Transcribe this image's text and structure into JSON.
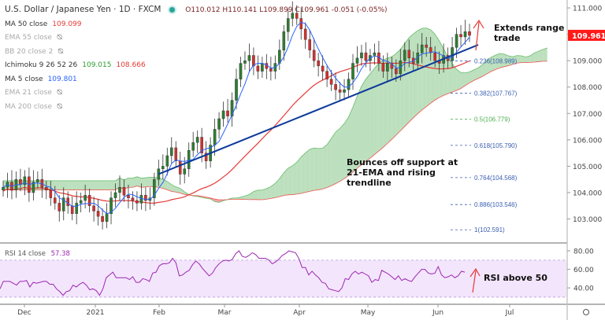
{
  "header": {
    "title": "U.S. Dollar / Japanese Yen · 1D · FXCM",
    "ohlc": {
      "open": "O110.012",
      "high": "H110.141",
      "low": "L109.899",
      "close": "C109.961",
      "change": "-0.051 (-0.05%)"
    }
  },
  "indicators": [
    {
      "label": "MA 50 close",
      "value": "109.099",
      "value_color": "#e53935",
      "hidden": false
    },
    {
      "label": "EMA 55 close",
      "value": "",
      "hidden": true
    },
    {
      "label": "BB 20 close 2",
      "value": "",
      "hidden": true
    },
    {
      "label": "Ichimoku 9 26 52 26",
      "value": "109.015",
      "value2": "108.666",
      "value_color": "#2e9a2e",
      "value2_color": "#e53935",
      "hidden": false
    },
    {
      "label": "MA 5 close",
      "value": "109.801",
      "value_color": "#2962ff",
      "hidden": false
    },
    {
      "label": "EMA 21 close",
      "value": "",
      "hidden": true
    },
    {
      "label": "MA 200 close",
      "value": "",
      "hidden": true
    }
  ],
  "annotations": {
    "extends_l1": "Extends range",
    "extends_l2": "trade",
    "bounces_l1": "Bounces off support at",
    "bounces_l2": "21-EMA and rising",
    "bounces_l3": "trendline",
    "rsi_note": "RSI above 50"
  },
  "rsi_legend": {
    "label": "RSI 14 close",
    "value": "57.38"
  },
  "chart_data": [
    {
      "type": "candlestick",
      "title": "U.S. Dollar / Japanese Yen · 1D · FXCM",
      "x_ticks": [
        "Dec",
        "2021",
        "Feb",
        "Mar",
        "Apr",
        "May",
        "Jun",
        "Jul"
      ],
      "y_ticks": [
        111,
        110,
        109,
        108,
        107,
        106,
        105,
        104,
        103
      ],
      "y_tick_labels": [
        "111.000",
        "110.000",
        "109.000",
        "108.000",
        "107.000",
        "106.000",
        "105.000",
        "104.000",
        "103.000"
      ],
      "ylim": [
        102.3,
        111.3
      ],
      "last_price": 109.961,
      "last_price_label": "109.961",
      "closes": [
        104.2,
        104.4,
        104.1,
        104.5,
        104.3,
        104.6,
        104.0,
        104.4,
        104.5,
        104.2,
        104.1,
        103.8,
        103.6,
        103.3,
        103.8,
        103.5,
        103.2,
        103.6,
        103.7,
        103.9,
        103.5,
        103.3,
        103.1,
        102.9,
        103.2,
        103.8,
        104.0,
        104.2,
        103.9,
        103.8,
        103.7,
        103.6,
        103.9,
        103.7,
        103.8,
        104.5,
        104.9,
        105.0,
        105.4,
        105.7,
        105.2,
        104.7,
        104.9,
        105.6,
        105.9,
        106.1,
        105.5,
        105.2,
        105.8,
        106.4,
        106.8,
        107.1,
        106.9,
        107.5,
        108.3,
        108.9,
        109.0,
        109.2,
        108.8,
        108.6,
        108.9,
        108.7,
        108.6,
        108.9,
        109.4,
        110.1,
        110.6,
        110.8,
        110.6,
        110.2,
        109.8,
        109.4,
        109.0,
        108.8,
        108.6,
        108.3,
        108.1,
        107.9,
        107.8,
        107.9,
        108.3,
        108.9,
        109.1,
        109.3,
        109.0,
        109.2,
        109.3,
        108.9,
        108.6,
        108.9,
        108.7,
        108.5,
        109.0,
        109.4,
        109.1,
        108.9,
        109.3,
        109.6,
        109.5,
        109.3,
        109.0,
        108.9,
        109.2,
        109.0,
        109.5,
        110.0,
        109.9,
        110.1,
        109.96
      ],
      "trendline": {
        "from": [
          36,
          104.7
        ],
        "to": [
          110,
          109.6
        ],
        "color": "#0d3a9a"
      },
      "ma5_color": "#2962ff",
      "ma50_color": "#e53935",
      "fib_levels": [
        {
          "label": "0.236(108.989)",
          "value": 108.989,
          "color": "#3a5fb0"
        },
        {
          "label": "0.382(107.767)",
          "value": 107.767,
          "color": "#3a5fb0"
        },
        {
          "label": "0.5(106.779)",
          "value": 106.779,
          "color": "#4caf50"
        },
        {
          "label": "0.618(105.790)",
          "value": 105.79,
          "color": "#3a5fb0"
        },
        {
          "label": "0.764(104.568)",
          "value": 104.568,
          "color": "#3a5fb0"
        },
        {
          "label": "0.886(103.546)",
          "value": 103.546,
          "color": "#3a5fb0"
        },
        {
          "label": "1(102.591)",
          "value": 102.591,
          "color": "#3a5fb0"
        }
      ]
    },
    {
      "type": "line",
      "title": "RSI 14 close",
      "y_ticks": [
        80,
        60,
        40
      ],
      "y_tick_labels": [
        "80.00",
        "60.00",
        "40.00"
      ],
      "ylim": [
        24,
        86
      ],
      "band": [
        30,
        70
      ],
      "values": [
        39,
        47,
        47,
        47,
        45,
        43,
        47,
        47,
        48,
        41,
        46,
        45,
        46,
        47,
        47,
        44,
        44,
        39,
        36,
        32,
        36,
        37,
        43,
        41,
        44,
        46,
        43,
        38,
        39,
        37,
        32,
        39,
        51,
        54,
        57,
        51,
        51,
        51,
        51,
        49,
        52,
        46,
        46,
        50,
        49,
        47,
        56,
        57,
        64,
        66,
        66,
        67,
        72,
        67,
        53,
        54,
        57,
        59,
        65,
        69,
        66,
        61,
        57,
        53,
        56,
        62,
        66,
        69,
        70,
        69,
        71,
        77,
        80,
        74,
        73,
        75,
        78,
        76,
        72,
        72,
        72,
        70,
        66,
        68,
        71,
        75,
        77,
        80,
        79,
        78,
        72,
        62,
        62,
        54,
        58,
        54,
        51,
        46,
        45,
        39,
        38,
        37,
        36,
        40,
        50,
        49,
        55,
        58,
        55,
        57,
        55,
        53,
        46,
        49,
        48,
        59,
        57,
        55,
        52,
        49,
        53,
        48,
        50,
        48,
        47,
        52,
        56,
        60,
        60,
        56,
        55,
        56,
        63,
        54,
        51,
        52,
        54,
        51,
        53,
        58,
        57
      ]
    }
  ]
}
